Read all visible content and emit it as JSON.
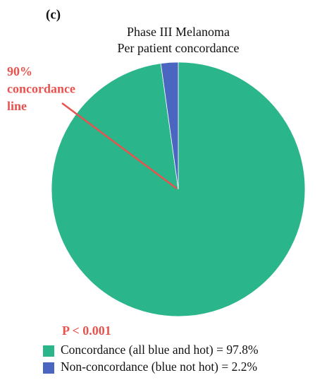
{
  "chart_data": {
    "type": "pie",
    "panel_label": "(c)",
    "title": "Phase III Melanoma",
    "subtitle": "Per patient concordance",
    "annotation_lines": [
      "90%",
      "concordance",
      "line"
    ],
    "p_value_text": "P < 0.001",
    "categories": [
      "Concordance (all blue and hot) = 97.8%",
      "Non-concordance (blue not hot) = 2.2%"
    ],
    "values": [
      97.8,
      2.2
    ],
    "colors": [
      "#2bb58a",
      "#4a66c0"
    ],
    "annotation_color": "#e8524f"
  }
}
